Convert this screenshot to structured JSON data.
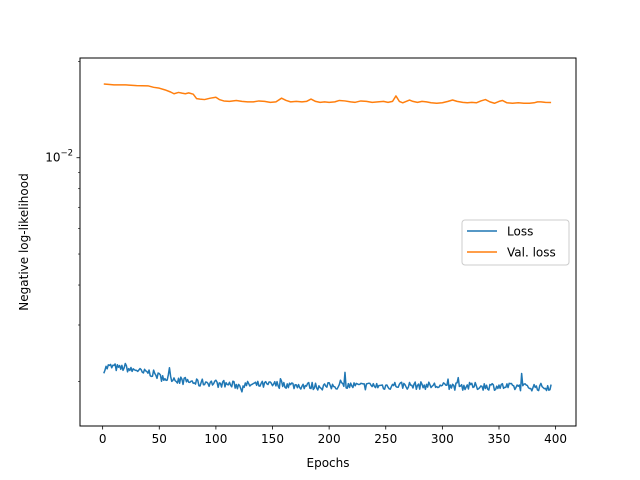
{
  "chart_data": {
    "type": "line",
    "title": "",
    "xlabel": "Epochs",
    "ylabel": "Negative log-likelihood",
    "xlim": [
      -20,
      418
    ],
    "ylim": [
      0.00145,
      0.0205
    ],
    "y_scale": "log",
    "xticks": [
      0,
      50,
      100,
      150,
      200,
      250,
      300,
      350,
      400
    ],
    "yticks": [
      {
        "value": 0.01,
        "label_base": "10",
        "label_exp": "−2"
      }
    ],
    "grid": false,
    "legend_position": "center-right",
    "series": [
      {
        "name": "Loss",
        "color": "#1f77b4",
        "x_start": 1,
        "x_end": 396,
        "points": [
          [
            1,
            0.00218
          ],
          [
            5,
            0.00222
          ],
          [
            10,
            0.00222
          ],
          [
            15,
            0.00219
          ],
          [
            20,
            0.00222
          ],
          [
            25,
            0.00216
          ],
          [
            30,
            0.00218
          ],
          [
            35,
            0.00212
          ],
          [
            40,
            0.00214
          ],
          [
            45,
            0.00211
          ],
          [
            50,
            0.00207
          ],
          [
            55,
            0.00204
          ],
          [
            60,
            0.00206
          ],
          [
            65,
            0.00203
          ],
          [
            70,
            0.00201
          ],
          [
            75,
            0.002
          ],
          [
            80,
            0.00199
          ],
          [
            85,
            0.00197
          ],
          [
            90,
            0.00199
          ],
          [
            95,
            0.00198
          ],
          [
            100,
            0.00197
          ],
          [
            110,
            0.00196
          ],
          [
            120,
            0.00194
          ],
          [
            130,
            0.00195
          ],
          [
            140,
            0.00195
          ],
          [
            150,
            0.00195
          ],
          [
            160,
            0.00196
          ],
          [
            170,
            0.00194
          ],
          [
            180,
            0.00194
          ],
          [
            190,
            0.00193
          ],
          [
            200,
            0.00193
          ],
          [
            210,
            0.00194
          ],
          [
            220,
            0.00194
          ],
          [
            230,
            0.00193
          ],
          [
            240,
            0.00194
          ],
          [
            250,
            0.00193
          ],
          [
            260,
            0.00195
          ],
          [
            270,
            0.00194
          ],
          [
            280,
            0.00194
          ],
          [
            290,
            0.00194
          ],
          [
            300,
            0.00193
          ],
          [
            310,
            0.00193
          ],
          [
            320,
            0.00193
          ],
          [
            330,
            0.00193
          ],
          [
            340,
            0.00193
          ],
          [
            350,
            0.00193
          ],
          [
            360,
            0.00192
          ],
          [
            370,
            0.00192
          ],
          [
            380,
            0.00192
          ],
          [
            390,
            0.00192
          ],
          [
            396,
            0.00193
          ]
        ],
        "noise_amplitude": 0.028
      },
      {
        "name": "Val. loss",
        "color": "#ff7f0e",
        "points": [
          [
            1,
            0.017
          ],
          [
            5,
            0.01695
          ],
          [
            10,
            0.0169
          ],
          [
            20,
            0.0169
          ],
          [
            25,
            0.01685
          ],
          [
            30,
            0.0168
          ],
          [
            40,
            0.01678
          ],
          [
            45,
            0.0166
          ],
          [
            50,
            0.0165
          ],
          [
            55,
            0.0163
          ],
          [
            60,
            0.01605
          ],
          [
            63,
            0.01585
          ],
          [
            67,
            0.016
          ],
          [
            70,
            0.01592
          ],
          [
            73,
            0.01585
          ],
          [
            76,
            0.01595
          ],
          [
            80,
            0.0158
          ],
          [
            83,
            0.0153
          ],
          [
            86,
            0.01525
          ],
          [
            90,
            0.0152
          ],
          [
            95,
            0.01535
          ],
          [
            100,
            0.01545
          ],
          [
            103,
            0.0152
          ],
          [
            107,
            0.01505
          ],
          [
            112,
            0.015
          ],
          [
            118,
            0.0151
          ],
          [
            123,
            0.015
          ],
          [
            128,
            0.01495
          ],
          [
            133,
            0.01495
          ],
          [
            138,
            0.01505
          ],
          [
            143,
            0.015
          ],
          [
            148,
            0.0149
          ],
          [
            153,
            0.01495
          ],
          [
            158,
            0.01535
          ],
          [
            162,
            0.0151
          ],
          [
            166,
            0.01495
          ],
          [
            171,
            0.015
          ],
          [
            176,
            0.01495
          ],
          [
            180,
            0.015
          ],
          [
            184,
            0.01525
          ],
          [
            188,
            0.015
          ],
          [
            192,
            0.0149
          ],
          [
            196,
            0.01495
          ],
          [
            200,
            0.0149
          ],
          [
            205,
            0.01495
          ],
          [
            209,
            0.0151
          ],
          [
            214,
            0.01505
          ],
          [
            219,
            0.01495
          ],
          [
            223,
            0.0149
          ],
          [
            228,
            0.01505
          ],
          [
            233,
            0.015
          ],
          [
            238,
            0.0149
          ],
          [
            243,
            0.01495
          ],
          [
            248,
            0.015
          ],
          [
            252,
            0.0149
          ],
          [
            256,
            0.015
          ],
          [
            259,
            0.0156
          ],
          [
            262,
            0.015
          ],
          [
            265,
            0.01485
          ],
          [
            268,
            0.015
          ],
          [
            271,
            0.01515
          ],
          [
            274,
            0.015
          ],
          [
            278,
            0.0149
          ],
          [
            282,
            0.015
          ],
          [
            286,
            0.01495
          ],
          [
            290,
            0.01485
          ],
          [
            295,
            0.0148
          ],
          [
            300,
            0.01485
          ],
          [
            305,
            0.015
          ],
          [
            309,
            0.01515
          ],
          [
            313,
            0.015
          ],
          [
            318,
            0.0149
          ],
          [
            322,
            0.01485
          ],
          [
            326,
            0.0149
          ],
          [
            330,
            0.01485
          ],
          [
            334,
            0.01505
          ],
          [
            338,
            0.0152
          ],
          [
            342,
            0.01495
          ],
          [
            346,
            0.0148
          ],
          [
            350,
            0.015
          ],
          [
            353,
            0.0151
          ],
          [
            357,
            0.01485
          ],
          [
            362,
            0.0148
          ],
          [
            367,
            0.01485
          ],
          [
            372,
            0.0148
          ],
          [
            377,
            0.0148
          ],
          [
            381,
            0.01485
          ],
          [
            384,
            0.01495
          ],
          [
            387,
            0.01495
          ],
          [
            391,
            0.0149
          ],
          [
            396,
            0.01488
          ]
        ]
      }
    ]
  }
}
